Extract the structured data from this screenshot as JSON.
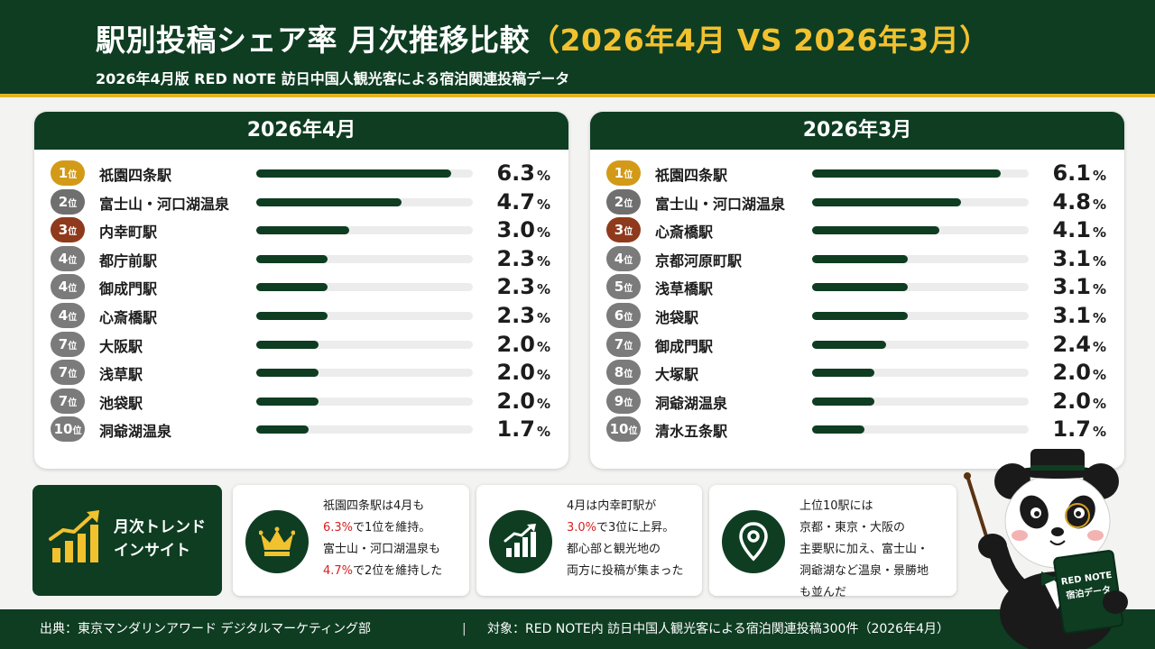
{
  "header": {
    "title_main": "駅別投稿シェア率 月次推移比較",
    "title_highlight": "（2026年4月 VS 2026年3月）",
    "subtitle": "2026年4月版 RED NOTE 訪日中国人観光客による宿泊関連投稿データ"
  },
  "chart_data": [
    {
      "type": "bar",
      "title": "2026年4月",
      "unit": "%",
      "rows": [
        {
          "rank": "1",
          "station": "祇園四条駅",
          "value": 6.3
        },
        {
          "rank": "2",
          "station": "富士山・河口湖温泉",
          "value": 4.7
        },
        {
          "rank": "3",
          "station": "内幸町駅",
          "value": 3.0
        },
        {
          "rank": "4",
          "station": "都庁前駅",
          "value": 2.3
        },
        {
          "rank": "4",
          "station": "御成門駅",
          "value": 2.3
        },
        {
          "rank": "4",
          "station": "心斎橋駅",
          "value": 2.3
        },
        {
          "rank": "7",
          "station": "大阪駅",
          "value": 2.0
        },
        {
          "rank": "7",
          "station": "浅草駅",
          "value": 2.0
        },
        {
          "rank": "7",
          "station": "池袋駅",
          "value": 2.0
        },
        {
          "rank": "10",
          "station": "洞爺湖温泉",
          "value": 1.7
        }
      ]
    },
    {
      "type": "bar",
      "title": "2026年3月",
      "unit": "%",
      "rows": [
        {
          "rank": "1",
          "station": "祇園四条駅",
          "value": 6.1
        },
        {
          "rank": "2",
          "station": "富士山・河口湖温泉",
          "value": 4.8
        },
        {
          "rank": "3",
          "station": "心斎橋駅",
          "value": 4.1
        },
        {
          "rank": "4",
          "station": "京都河原町駅",
          "value": 3.1
        },
        {
          "rank": "5",
          "station": "浅草橋駅",
          "value": 3.1
        },
        {
          "rank": "6",
          "station": "池袋駅",
          "value": 3.1
        },
        {
          "rank": "7",
          "station": "御成門駅",
          "value": 2.4
        },
        {
          "rank": "8",
          "station": "大塚駅",
          "value": 2.0
        },
        {
          "rank": "9",
          "station": "洞爺湖温泉",
          "value": 2.0
        },
        {
          "rank": "10",
          "station": "清水五条駅",
          "value": 1.7
        }
      ]
    }
  ],
  "rank_suffix": "位",
  "colors": {
    "dark_green": "#0e3d22",
    "gold": "#d39a17",
    "silver": "#6f6f6f",
    "bronze": "#8f3a1c",
    "accent_yellow": "#f2c12e",
    "highlight_red": "#d82020"
  },
  "insights": {
    "label_line1": "月次トレンド",
    "label_line2": "インサイト",
    "label_icon": "trend-chart-icon",
    "cards": [
      {
        "icon": "crown-icon",
        "lines": [
          [
            "祇園四条駅は4月も"
          ],
          [
            {
              "red": "6.3%"
            },
            "で1位を維持。"
          ],
          [
            "富士山・河口湖温泉も"
          ],
          [
            {
              "red": "4.7%"
            },
            "で2位を維持した"
          ]
        ]
      },
      {
        "icon": "growth-chart-icon",
        "lines": [
          [
            "4月は内幸町駅が"
          ],
          [
            {
              "red": "3.0%"
            },
            "で3位に上昇。"
          ],
          [
            "都心部と観光地の"
          ],
          [
            "両方に投稿が集まった"
          ]
        ]
      },
      {
        "icon": "location-pin-icon",
        "lines": [
          [
            "上位10駅には"
          ],
          [
            "京都・東京・大阪の"
          ],
          [
            "主要駅に加え、富士山・"
          ],
          [
            "洞爺湖など温泉・景勝地"
          ],
          [
            "も並んだ"
          ]
        ]
      }
    ]
  },
  "mascot": {
    "icon": "panda-mascot-icon",
    "book_line1": "RED NOTE",
    "book_line2": "宿泊データ"
  },
  "footer": {
    "source": "出典：東京マンダリンアワード デジタルマーケティング部",
    "separator": "|",
    "target": "対象：RED NOTE内 訪日中国人観光客による宿泊関連投稿300件（2026年4月）"
  }
}
